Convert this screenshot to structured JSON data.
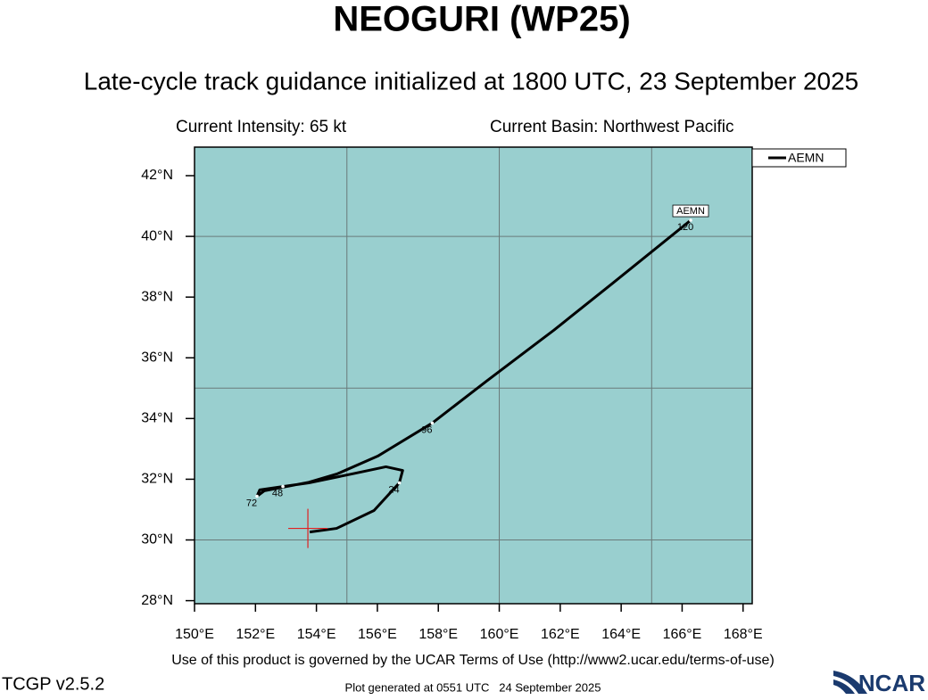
{
  "title": "NEOGURI (WP25)",
  "subtitle": "Late-cycle track guidance initialized at 1800 UTC, 23 September 2025",
  "info_left": "Current Intensity: 65 kt",
  "info_right": "Current Basin: Northwest Pacific",
  "footer": "Use of this product is governed by the UCAR Terms of Use (http://www2.ucar.edu/terms-of-use)",
  "version": "TCGP v2.5.2",
  "generated": "Plot generated at 0551 UTC   24 September 2025",
  "logo": "NCAR",
  "chart_data": {
    "type": "line",
    "xlim": [
      150,
      168.3
    ],
    "ylim": [
      27.9,
      42.94
    ],
    "xticks": [
      {
        "value": 150,
        "label": "150°E"
      },
      {
        "value": 152,
        "label": "152°E"
      },
      {
        "value": 154,
        "label": "154°E"
      },
      {
        "value": 156,
        "label": "156°E"
      },
      {
        "value": 158,
        "label": "158°E"
      },
      {
        "value": 160,
        "label": "160°E"
      },
      {
        "value": 162,
        "label": "162°E"
      },
      {
        "value": 164,
        "label": "164°E"
      },
      {
        "value": 166,
        "label": "166°E"
      },
      {
        "value": 168,
        "label": "168°E"
      }
    ],
    "yticks": [
      {
        "value": 28,
        "label": "28°N"
      },
      {
        "value": 30,
        "label": "30°N"
      },
      {
        "value": 32,
        "label": "32°N"
      },
      {
        "value": 34,
        "label": "34°N"
      },
      {
        "value": 36,
        "label": "36°N"
      },
      {
        "value": 38,
        "label": "38°N"
      },
      {
        "value": 40,
        "label": "40°N"
      },
      {
        "value": 42,
        "label": "42°N"
      }
    ],
    "xgrid": [
      155,
      160,
      165
    ],
    "ygrid": [
      30,
      35,
      40
    ],
    "background": "#99cfcf",
    "legend": "top-right",
    "current_position": {
      "x": 153.72,
      "y": 30.38,
      "color": "#e02020"
    },
    "series": [
      {
        "name": "AEMN",
        "color": "#000000",
        "x": [
          153.78,
          154.66,
          155.89,
          156.72,
          156.83,
          156.28,
          155.19,
          153.75,
          152.9,
          152.14,
          152.05,
          152.29,
          153.75,
          154.69,
          156.01,
          157.8,
          159.59,
          161.79,
          163.7,
          166.28
        ],
        "values": [
          30.26,
          30.38,
          30.97,
          31.88,
          32.29,
          32.41,
          32.18,
          31.88,
          31.76,
          31.65,
          31.44,
          31.62,
          31.9,
          32.18,
          32.76,
          33.85,
          35.24,
          36.91,
          38.44,
          40.53
        ],
        "point_labels": [
          null,
          null,
          null,
          "24",
          null,
          null,
          null,
          null,
          "48",
          null,
          "72",
          null,
          null,
          null,
          null,
          "96",
          null,
          null,
          null,
          "120"
        ]
      }
    ]
  }
}
